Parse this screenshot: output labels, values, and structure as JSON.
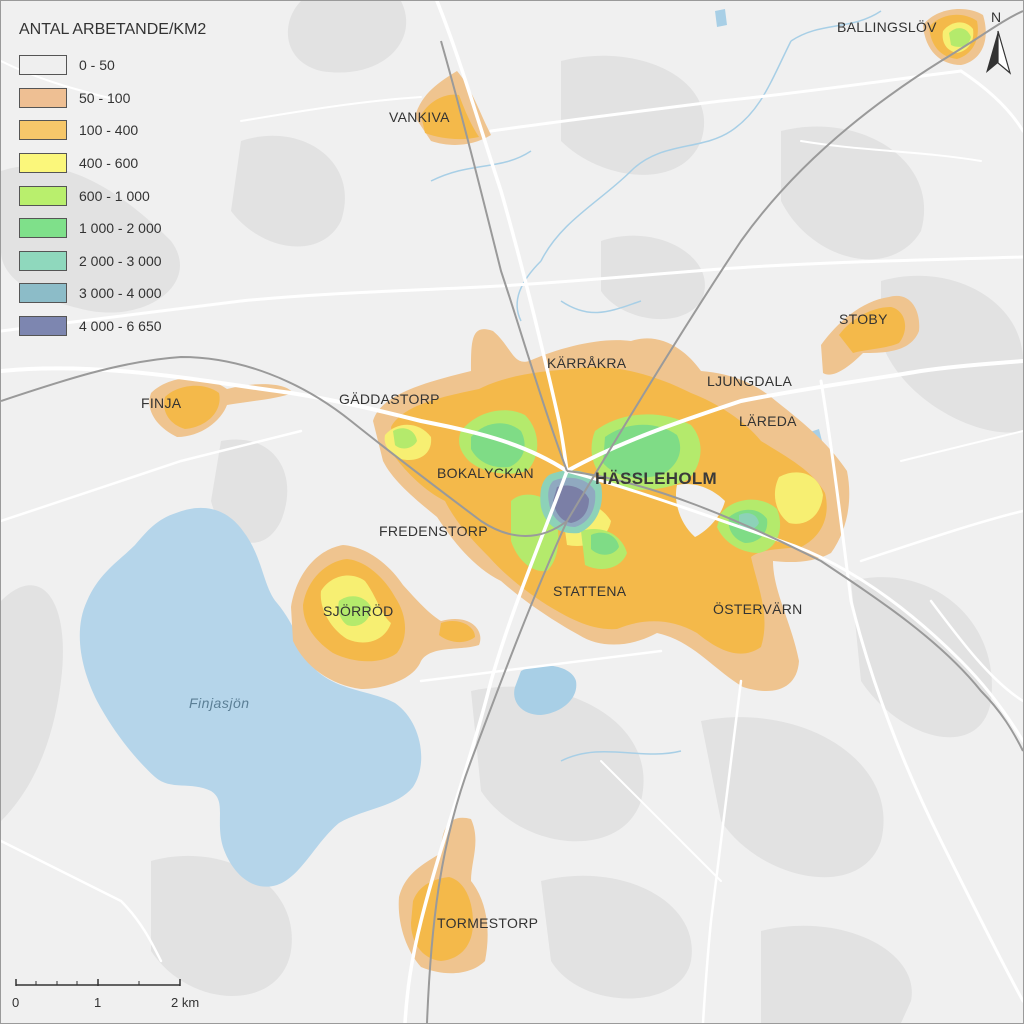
{
  "legend": {
    "title": "ANTAL ARBETANDE/KM2",
    "items": [
      {
        "label": "0 - 50",
        "color": "#efefef"
      },
      {
        "label": "50 - 100",
        "color": "#eebf93"
      },
      {
        "label": "100 - 400",
        "color": "#f6c76a"
      },
      {
        "label": "400 - 600",
        "color": "#fbf77b"
      },
      {
        "label": "600 - 1 000",
        "color": "#b9ef6d"
      },
      {
        "label": "1 000 - 2 000",
        "color": "#7fe08a"
      },
      {
        "label": "2 000 - 3 000",
        "color": "#8fd8bd"
      },
      {
        "label": "3 000 - 4 000",
        "color": "#8cbcc8"
      },
      {
        "label": "4 000 - 6 650",
        "color": "#7d86b0"
      }
    ]
  },
  "places": {
    "ballingslov": "BALLINGSLÖV",
    "vankiva": "VANKIVA",
    "stoby": "STOBY",
    "karraakra": "KÄRRÅKRA",
    "ljungdala": "LJUNGDALA",
    "finja": "FINJA",
    "gaddastorp": "GÄDDASTORP",
    "lareda": "LÄREDA",
    "bokalyckan": "BOKALYCKAN",
    "hassleholm": "HÄSSLEHOLM",
    "fredenstorp": "FREDENSTORP",
    "sjorrod": "SJÖRRÖD",
    "stattena": "STATTENA",
    "ostervarn": "ÖSTERVÄRN",
    "tormestorp": "TORMESTORP"
  },
  "water": {
    "lake": "Finjasjön"
  },
  "north_arrow": {
    "letter": "N",
    "icon": "north-arrow-icon"
  },
  "scale_bar": {
    "labels": [
      "0",
      "1",
      "2 km"
    ]
  }
}
